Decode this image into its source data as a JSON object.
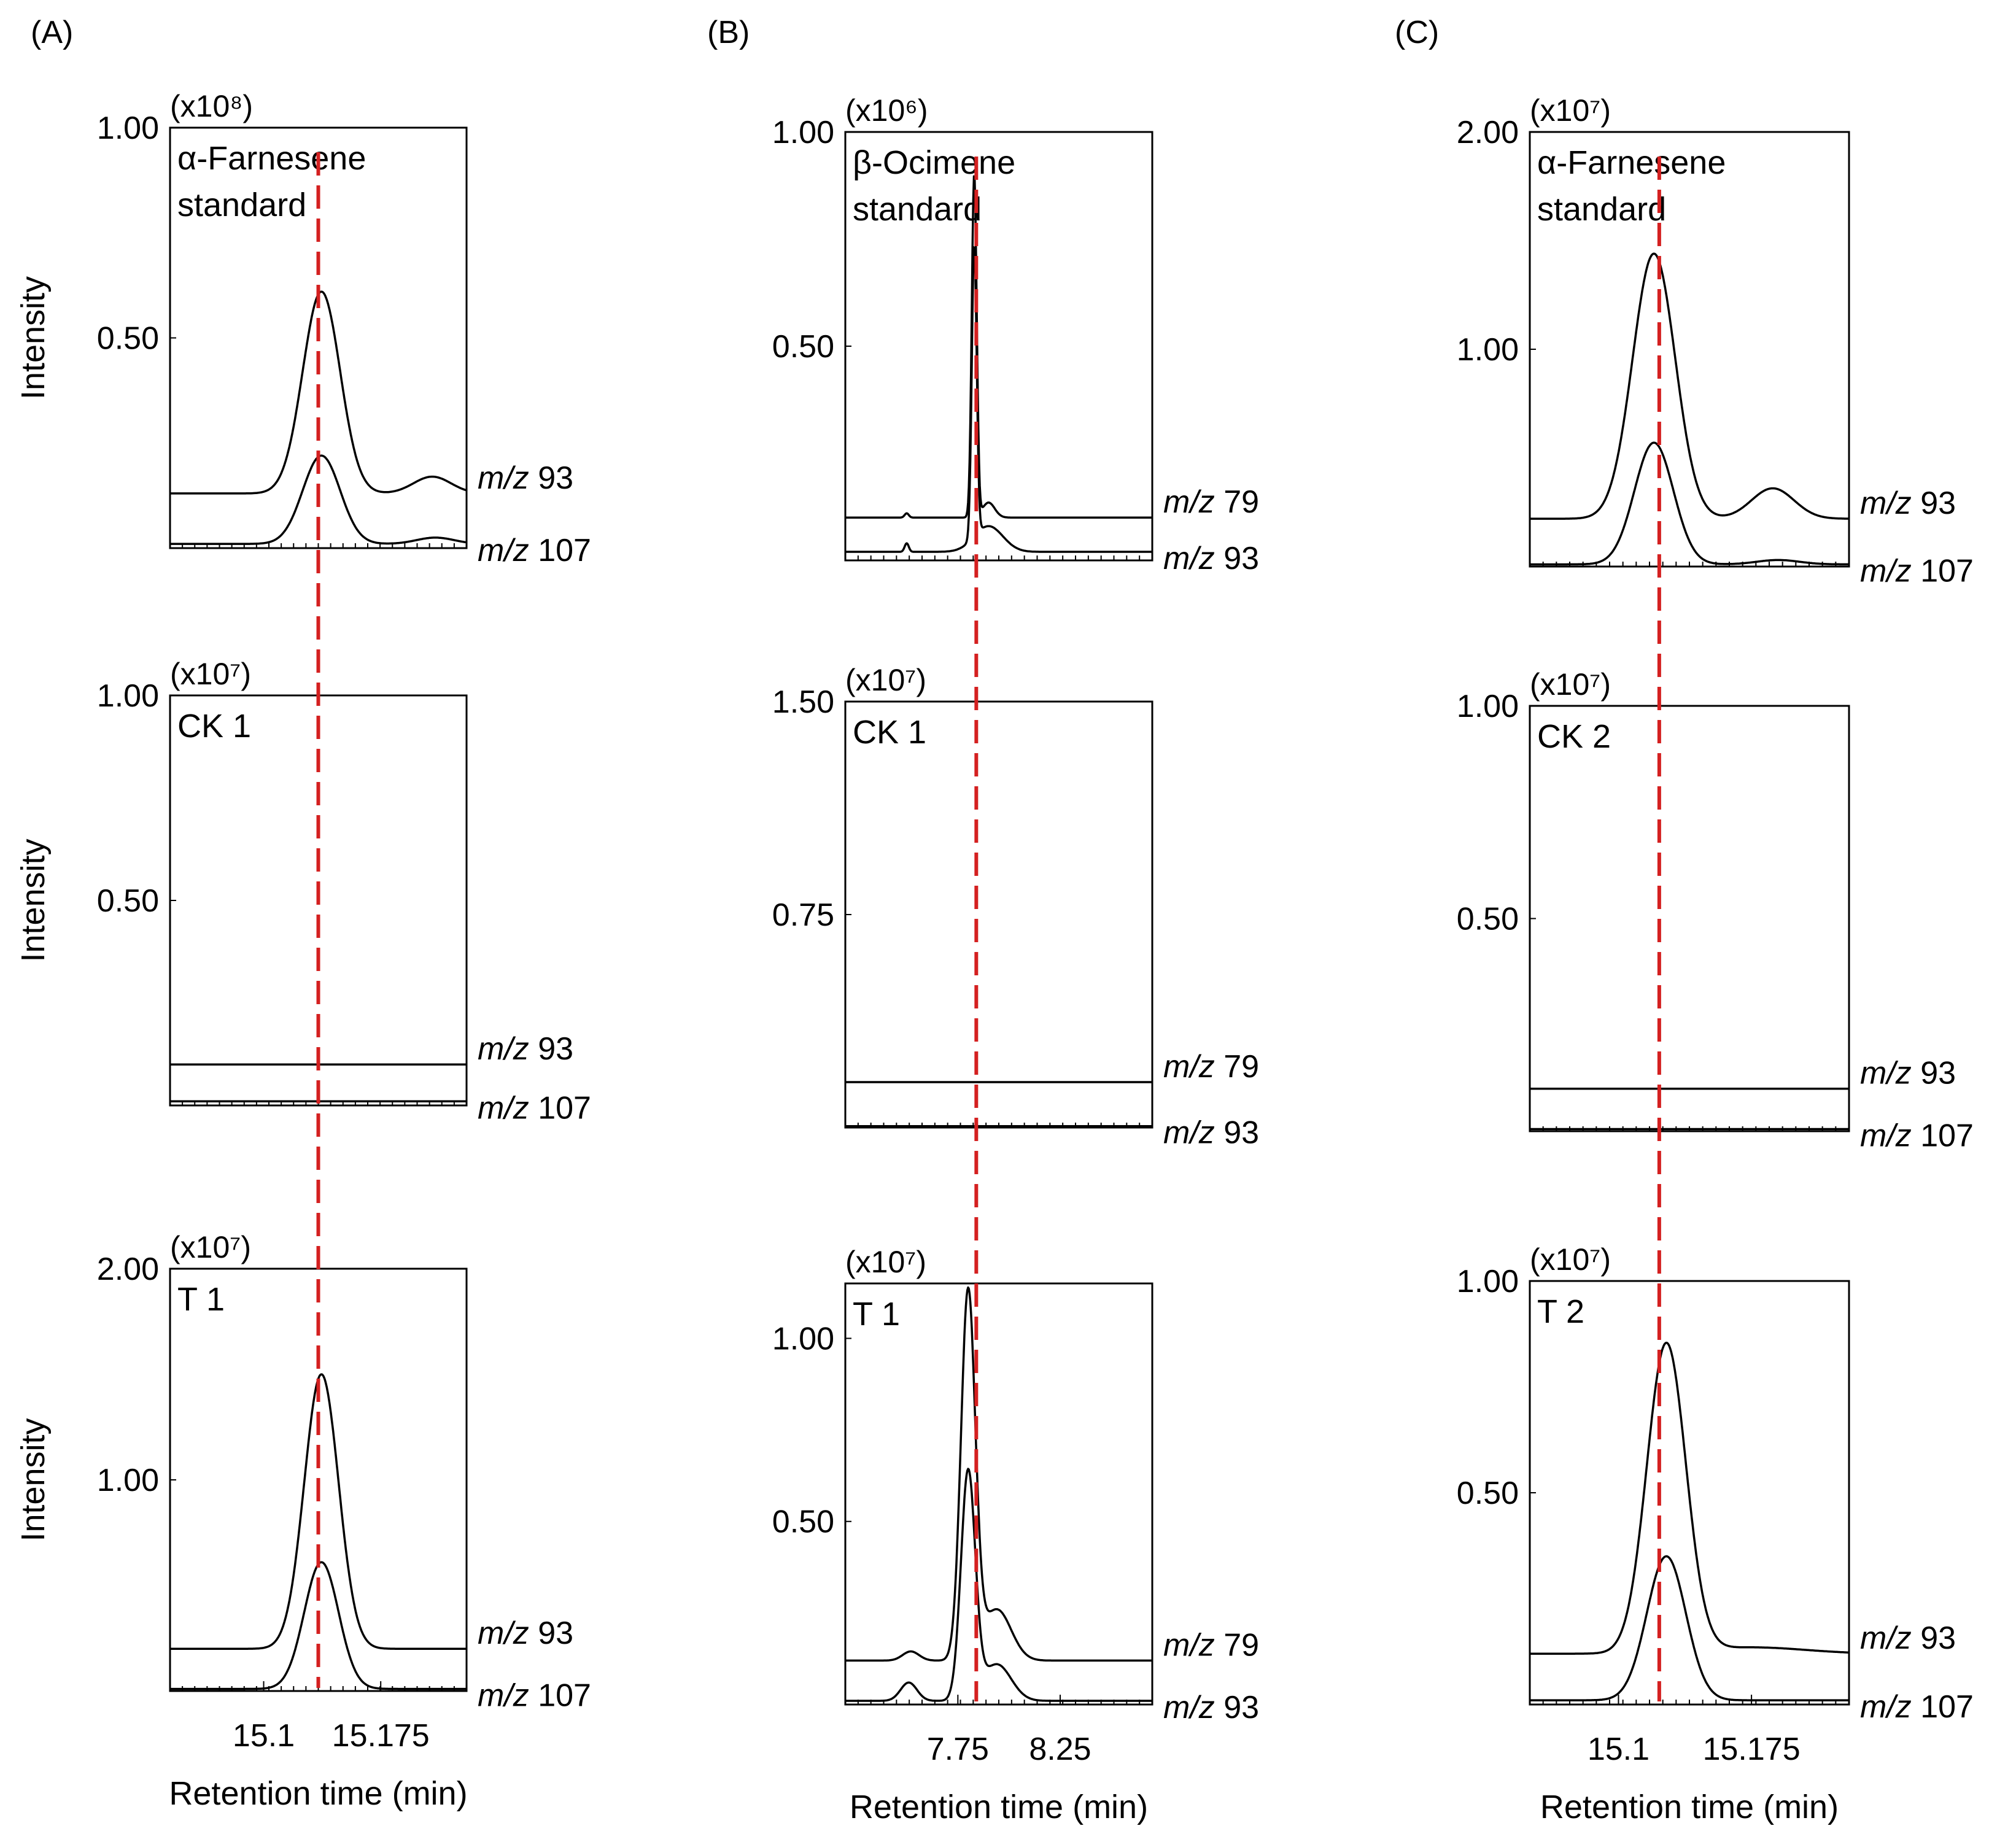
{
  "marker_color": "#d42020",
  "chart_data": [
    {
      "type": "line",
      "panel": "(A)",
      "xlabel": "Retention time (min)",
      "x_ticks": [
        "15.1",
        "15.175"
      ],
      "xlim": [
        15.04,
        15.23
      ],
      "marker_x": 15.135,
      "rows": [
        {
          "sample": "α-Farnesene standard",
          "sample_lines": [
            "α-Farnesene",
            "standard"
          ],
          "scale": "(x10⁸)",
          "ylabel": "Intensity",
          "y_ticks": [
            "1.00",
            "0.50"
          ],
          "y_tick_values": [
            1.0,
            0.5
          ],
          "ylim": [
            0,
            1.0
          ],
          "series": [
            {
              "name": "m/z 93",
              "label_m": "m/z",
              "label_num": "93",
              "baseline": 0.13,
              "peaks": [
                {
                  "x": 15.137,
                  "h": 0.48,
                  "w": 0.012
                },
                {
                  "x": 15.208,
                  "h": 0.04,
                  "w": 0.012
                }
              ]
            },
            {
              "name": "m/z 107",
              "label_m": "m/z",
              "label_num": "107",
              "baseline": 0.01,
              "peaks": [
                {
                  "x": 15.137,
                  "h": 0.21,
                  "w": 0.012
                },
                {
                  "x": 15.21,
                  "h": 0.015,
                  "w": 0.012
                }
              ]
            }
          ]
        },
        {
          "sample": "CK 1",
          "sample_lines": [
            "CK 1"
          ],
          "scale": "(x10⁷)",
          "ylabel": "Intensity",
          "y_ticks": [
            "1.00",
            "0.50"
          ],
          "y_tick_values": [
            1.0,
            0.5
          ],
          "ylim": [
            0,
            1.0
          ],
          "series": [
            {
              "name": "m/z 93",
              "label_m": "m/z",
              "label_num": "93",
              "baseline": 0.1,
              "peaks": []
            },
            {
              "name": "m/z 107",
              "label_m": "m/z",
              "label_num": "107",
              "baseline": 0.01,
              "peaks": []
            }
          ]
        },
        {
          "sample": "T 1",
          "sample_lines": [
            "T 1"
          ],
          "scale": "(x10⁷)",
          "ylabel": "Intensity",
          "y_ticks": [
            "2.00",
            "1.00"
          ],
          "y_tick_values": [
            2.0,
            1.0
          ],
          "ylim": [
            0,
            2.0
          ],
          "series": [
            {
              "name": "m/z 93",
              "label_m": "m/z",
              "label_num": "93",
              "baseline": 0.2,
              "peaks": [
                {
                  "x": 15.137,
                  "h": 1.3,
                  "w": 0.011
                }
              ]
            },
            {
              "name": "m/z 107",
              "label_m": "m/z",
              "label_num": "107",
              "baseline": 0.01,
              "peaks": [
                {
                  "x": 15.137,
                  "h": 0.6,
                  "w": 0.011
                }
              ]
            }
          ]
        }
      ]
    },
    {
      "type": "line",
      "panel": "(B)",
      "xlabel": "Retention time (min)",
      "x_ticks": [
        "7.75",
        "8.25"
      ],
      "xlim": [
        7.2,
        8.7
      ],
      "marker_x": 7.84,
      "rows": [
        {
          "sample": "β-Ocimene standard",
          "sample_lines": [
            "β-Ocimene",
            "standard"
          ],
          "scale": "(x10⁶)",
          "ylabel": "",
          "y_ticks": [
            "1.00",
            "0.50"
          ],
          "y_tick_values": [
            1.0,
            0.5
          ],
          "ylim": [
            0,
            1.0
          ],
          "series": [
            {
              "name": "m/z 79",
              "label_m": "m/z",
              "label_num": "79",
              "baseline": 0.1,
              "peaks": [
                {
                  "x": 7.83,
                  "h": 0.8,
                  "w": 0.012
                },
                {
                  "x": 7.9,
                  "h": 0.035,
                  "w": 0.03
                },
                {
                  "x": 7.5,
                  "h": 0.01,
                  "w": 0.01
                }
              ]
            },
            {
              "name": "m/z 93",
              "label_m": "m/z",
              "label_num": "93",
              "baseline": 0.02,
              "peaks": [
                {
                  "x": 7.83,
                  "h": 0.68,
                  "w": 0.012
                },
                {
                  "x": 7.9,
                  "h": 0.06,
                  "w": 0.07
                },
                {
                  "x": 7.5,
                  "h": 0.02,
                  "w": 0.01
                }
              ]
            }
          ]
        },
        {
          "sample": "CK 1",
          "sample_lines": [
            "CK 1"
          ],
          "scale": "(x10⁷)",
          "ylabel": "",
          "y_ticks": [
            "1.50",
            "0.75"
          ],
          "y_tick_values": [
            1.5,
            0.75
          ],
          "ylim": [
            0,
            1.5
          ],
          "series": [
            {
              "name": "m/z 79",
              "label_m": "m/z",
              "label_num": "79",
              "baseline": 0.16,
              "peaks": []
            },
            {
              "name": "m/z 93",
              "label_m": "m/z",
              "label_num": "93",
              "baseline": 0.005,
              "peaks": []
            }
          ]
        },
        {
          "sample": "T 1",
          "sample_lines": [
            "T 1"
          ],
          "scale": "(x10⁷)",
          "ylabel": "",
          "y_ticks": [
            "1.00",
            "0.50"
          ],
          "y_tick_values": [
            1.0,
            0.5
          ],
          "ylim": [
            0,
            1.15
          ],
          "series": [
            {
              "name": "m/z 79",
              "label_m": "m/z",
              "label_num": "79",
              "baseline": 0.12,
              "peaks": [
                {
                  "x": 7.8,
                  "h": 1.0,
                  "w": 0.035
                },
                {
                  "x": 7.94,
                  "h": 0.14,
                  "w": 0.07
                },
                {
                  "x": 7.52,
                  "h": 0.025,
                  "w": 0.04
                }
              ]
            },
            {
              "name": "m/z 93",
              "label_m": "m/z",
              "label_num": "93",
              "baseline": 0.01,
              "peaks": [
                {
                  "x": 7.8,
                  "h": 0.62,
                  "w": 0.035
                },
                {
                  "x": 7.94,
                  "h": 0.1,
                  "w": 0.07
                },
                {
                  "x": 7.51,
                  "h": 0.05,
                  "w": 0.04
                }
              ]
            }
          ]
        }
      ]
    },
    {
      "type": "line",
      "panel": "(C)",
      "xlabel": "Retention time (min)",
      "x_ticks": [
        "15.1",
        "15.175"
      ],
      "xlim": [
        15.05,
        15.23
      ],
      "marker_x": 15.123,
      "rows": [
        {
          "sample": "α-Farnesene standard",
          "sample_lines": [
            "α-Farnesene",
            "standard"
          ],
          "scale": "(x10⁷)",
          "ylabel": "",
          "y_ticks": [
            "2.00",
            "1.00"
          ],
          "y_tick_values": [
            2.0,
            1.0
          ],
          "ylim": [
            0,
            2.0
          ],
          "series": [
            {
              "name": "m/z 93",
              "label_m": "m/z",
              "label_num": "93",
              "baseline": 0.22,
              "peaks": [
                {
                  "x": 15.12,
                  "h": 1.22,
                  "w": 0.012
                },
                {
                  "x": 15.187,
                  "h": 0.14,
                  "w": 0.012
                }
              ]
            },
            {
              "name": "m/z 107",
              "label_m": "m/z",
              "label_num": "107",
              "baseline": 0.01,
              "peaks": [
                {
                  "x": 15.12,
                  "h": 0.56,
                  "w": 0.011
                },
                {
                  "x": 15.19,
                  "h": 0.02,
                  "w": 0.012
                }
              ]
            }
          ]
        },
        {
          "sample": "CK 2",
          "sample_lines": [
            "CK 2"
          ],
          "scale": "(x10⁷)",
          "ylabel": "",
          "y_ticks": [
            "1.00",
            "0.50"
          ],
          "y_tick_values": [
            1.0,
            0.5
          ],
          "ylim": [
            0,
            1.0
          ],
          "series": [
            {
              "name": "m/z 93",
              "label_m": "m/z",
              "label_num": "93",
              "baseline": 0.1,
              "peaks": []
            },
            {
              "name": "m/z 107",
              "label_m": "m/z",
              "label_num": "107",
              "baseline": 0.005,
              "peaks": []
            }
          ]
        },
        {
          "sample": "T 2",
          "sample_lines": [
            "T 2"
          ],
          "scale": "(x10⁷)",
          "ylabel": "",
          "y_ticks": [
            "1.00",
            "0.50"
          ],
          "y_tick_values": [
            1.0,
            0.5
          ],
          "ylim": [
            0,
            1.0
          ],
          "series": [
            {
              "name": "m/z 93",
              "label_m": "m/z",
              "label_num": "93",
              "baseline": 0.12,
              "peaks": [
                {
                  "x": 15.127,
                  "h": 0.73,
                  "w": 0.011
                },
                {
                  "x": 15.175,
                  "h": 0.015,
                  "w": 0.03
                }
              ]
            },
            {
              "name": "m/z 107",
              "label_m": "m/z",
              "label_num": "107",
              "baseline": 0.01,
              "peaks": [
                {
                  "x": 15.127,
                  "h": 0.34,
                  "w": 0.011
                }
              ]
            }
          ]
        }
      ]
    }
  ]
}
